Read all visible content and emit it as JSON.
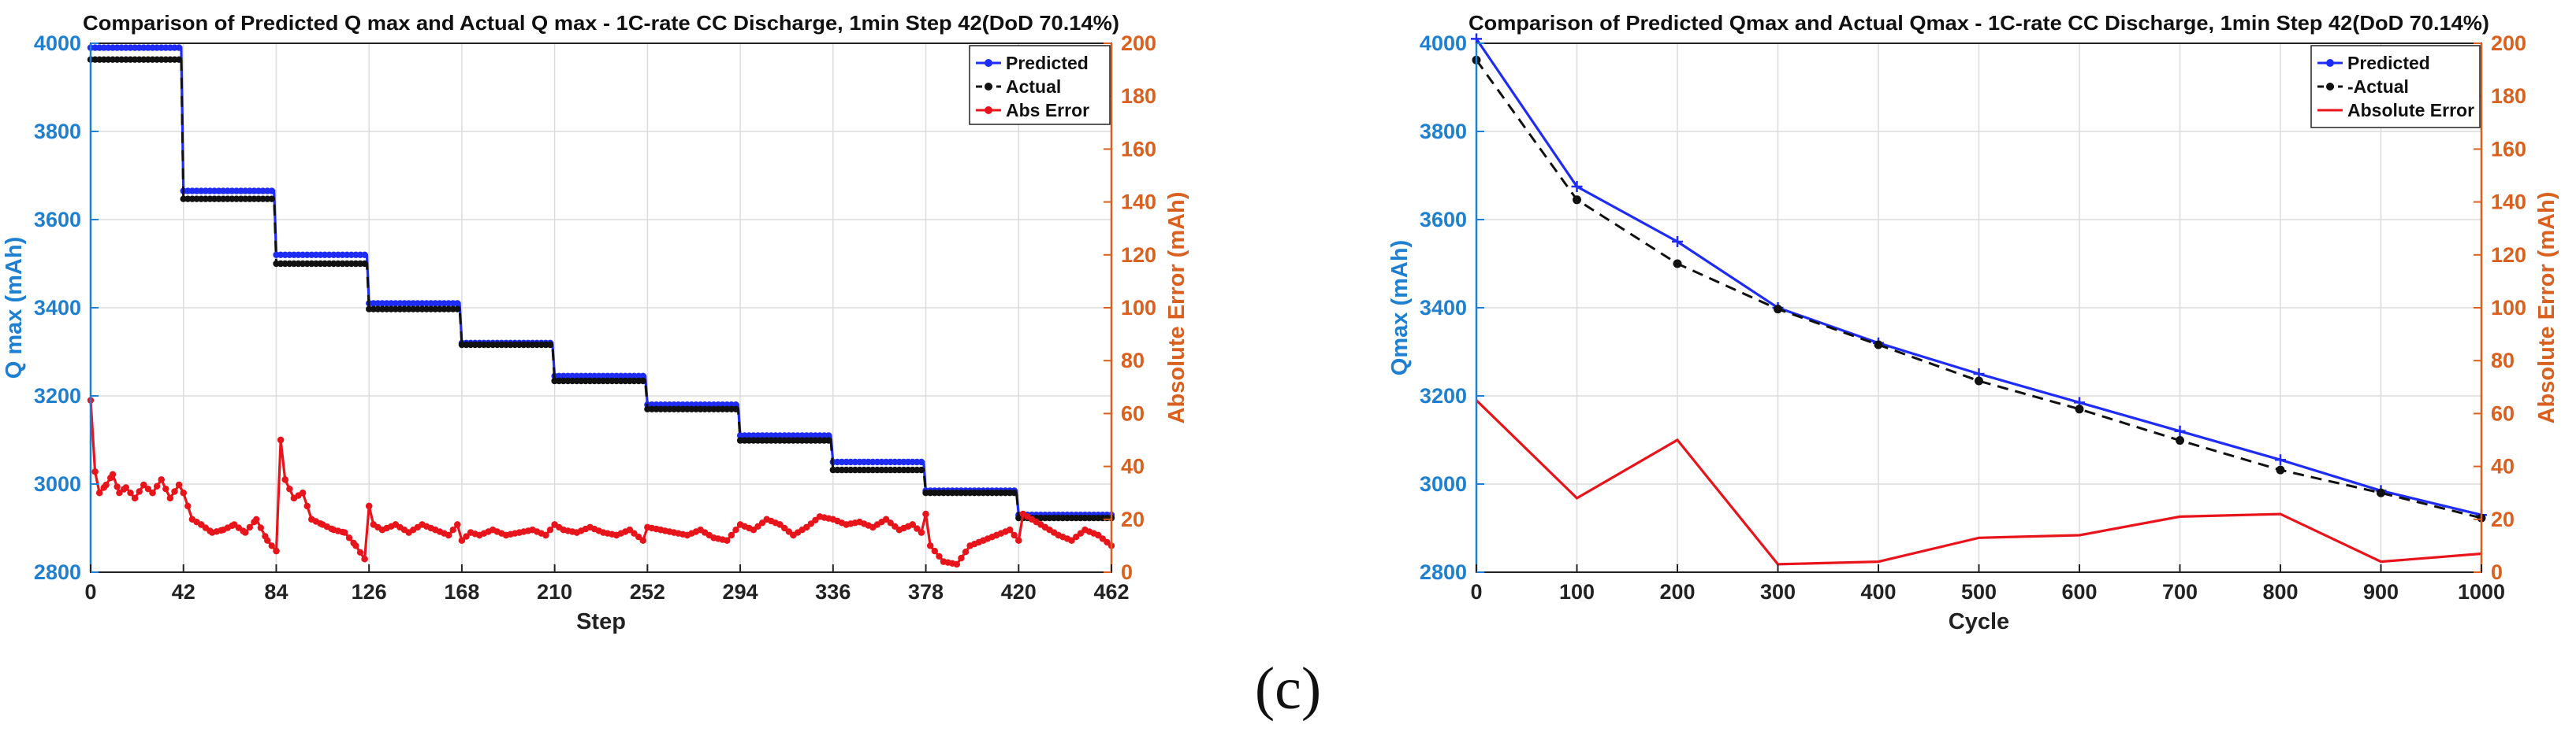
{
  "caption": "(c)",
  "colors": {
    "predicted": "#1f2cf5",
    "actual": "#111111",
    "error": "#e8141b",
    "left_axis": "#1f7fd0",
    "right_axis": "#d9601f"
  },
  "chart_data": [
    {
      "type": "line",
      "title": "Comparison of Predicted Q max and Actual Q max - 1C-rate CC Discharge, 1min Step 42(DoD 70.14%)",
      "xlabel": "Step",
      "ylabel": "Q max (mAh)",
      "y2label": "Absolute Error (mAh)",
      "xlim": [
        0,
        462
      ],
      "ylim": [
        2800,
        4000
      ],
      "y2lim": [
        0,
        200
      ],
      "xticks": [
        "0",
        "42",
        "84",
        "126",
        "168",
        "210",
        "252",
        "294",
        "336",
        "378",
        "420",
        "462"
      ],
      "yticks": [
        "2800",
        "3000",
        "3200",
        "3400",
        "3600",
        "3800",
        "4000"
      ],
      "y2ticks": [
        "0",
        "20",
        "40",
        "60",
        "80",
        "100",
        "120",
        "140",
        "160",
        "180",
        "200"
      ],
      "grid": true,
      "legend_position": "top-right",
      "marker_spacing": 2,
      "series": [
        {
          "name": "Predicted",
          "axis": "left",
          "style": "solid-marker",
          "x": [
            0,
            41,
            42,
            83,
            84,
            125,
            126,
            167,
            168,
            209,
            210,
            251,
            252,
            293,
            294,
            335,
            336,
            377,
            378,
            419,
            420,
            462
          ],
          "values": [
            3990,
            3990,
            3665,
            3665,
            3520,
            3520,
            3410,
            3410,
            3320,
            3320,
            3245,
            3245,
            3180,
            3180,
            3110,
            3110,
            3050,
            3050,
            2985,
            2985,
            2930,
            2930
          ]
        },
        {
          "name": "Actual",
          "axis": "left",
          "style": "dashed-marker",
          "x": [
            0,
            41,
            42,
            83,
            84,
            125,
            126,
            167,
            168,
            209,
            210,
            251,
            252,
            293,
            294,
            335,
            336,
            377,
            378,
            419,
            420,
            462
          ],
          "values": [
            3963,
            3963,
            3647,
            3647,
            3500,
            3500,
            3397,
            3397,
            3316,
            3316,
            3234,
            3234,
            3170,
            3170,
            3099,
            3099,
            3032,
            3032,
            2980,
            2980,
            2923,
            2923
          ]
        },
        {
          "name": "Abs Error",
          "axis": "right",
          "style": "solid-marker",
          "x": [
            0,
            2,
            4,
            7,
            10,
            13,
            16,
            20,
            24,
            28,
            32,
            36,
            40,
            42,
            46,
            50,
            55,
            60,
            65,
            70,
            75,
            80,
            84,
            86,
            88,
            92,
            96,
            100,
            105,
            110,
            115,
            120,
            124,
            126,
            128,
            132,
            138,
            144,
            150,
            156,
            162,
            166,
            168,
            172,
            176,
            182,
            188,
            194,
            200,
            206,
            210,
            214,
            220,
            226,
            232,
            238,
            244,
            250,
            252,
            258,
            264,
            270,
            276,
            282,
            288,
            294,
            300,
            306,
            312,
            318,
            324,
            330,
            336,
            342,
            348,
            354,
            360,
            366,
            372,
            376,
            378,
            380,
            386,
            392,
            398,
            404,
            410,
            416,
            420,
            422,
            426,
            432,
            438,
            444,
            450,
            456,
            462
          ],
          "values": [
            65,
            38,
            30,
            33,
            37,
            30,
            32,
            28,
            33,
            30,
            35,
            28,
            33,
            30,
            20,
            18,
            15,
            16,
            18,
            15,
            20,
            12,
            8,
            50,
            35,
            28,
            30,
            20,
            18,
            16,
            15,
            10,
            5,
            25,
            18,
            16,
            18,
            15,
            18,
            16,
            14,
            18,
            12,
            15,
            14,
            16,
            14,
            15,
            16,
            14,
            18,
            16,
            15,
            17,
            15,
            14,
            16,
            12,
            17,
            16,
            15,
            14,
            16,
            13,
            12,
            18,
            16,
            20,
            18,
            14,
            17,
            21,
            20,
            18,
            19,
            17,
            20,
            16,
            18,
            15,
            22,
            10,
            4,
            3,
            10,
            12,
            14,
            16,
            12,
            22,
            20,
            17,
            14,
            12,
            16,
            14,
            10
          ]
        }
      ]
    },
    {
      "type": "line",
      "title": "Comparison of Predicted Qmax and Actual Qmax - 1C-rate CC Discharge, 1min Step 42(DoD 70.14%)",
      "xlabel": "Cycle",
      "ylabel": "Qmax (mAh)",
      "y2label": "Absolute Error (mAh)",
      "xlim": [
        0,
        1000
      ],
      "ylim": [
        2800,
        4000
      ],
      "y2lim": [
        0,
        200
      ],
      "xticks": [
        "0",
        "100",
        "200",
        "300",
        "400",
        "500",
        "600",
        "700",
        "800",
        "900",
        "1000"
      ],
      "yticks": [
        "2800",
        "3000",
        "3200",
        "3400",
        "3600",
        "3800",
        "4000"
      ],
      "y2ticks": [
        "0",
        "20",
        "40",
        "60",
        "80",
        "100",
        "120",
        "140",
        "160",
        "180",
        "200"
      ],
      "grid": true,
      "legend_position": "top-right",
      "series": [
        {
          "name": "Predicted",
          "axis": "left",
          "style": "solid-plus",
          "x": [
            0,
            100,
            200,
            300,
            400,
            500,
            600,
            700,
            800,
            900,
            1000
          ],
          "values": [
            4010,
            3675,
            3550,
            3400,
            3320,
            3250,
            3185,
            3120,
            3055,
            2985,
            2930
          ]
        },
        {
          "name": "-Actual",
          "axis": "left",
          "style": "dashed-dot",
          "x": [
            0,
            100,
            200,
            300,
            400,
            500,
            600,
            700,
            800,
            900,
            1000
          ],
          "values": [
            3962,
            3645,
            3500,
            3397,
            3316,
            3234,
            3170,
            3099,
            3032,
            2980,
            2923
          ]
        },
        {
          "name": "Absolute Error",
          "axis": "right",
          "style": "solid",
          "x": [
            0,
            100,
            200,
            300,
            400,
            500,
            600,
            700,
            800,
            900,
            1000
          ],
          "values": [
            65,
            28,
            50,
            3,
            4,
            13,
            14,
            21,
            22,
            4,
            7
          ]
        }
      ]
    }
  ]
}
